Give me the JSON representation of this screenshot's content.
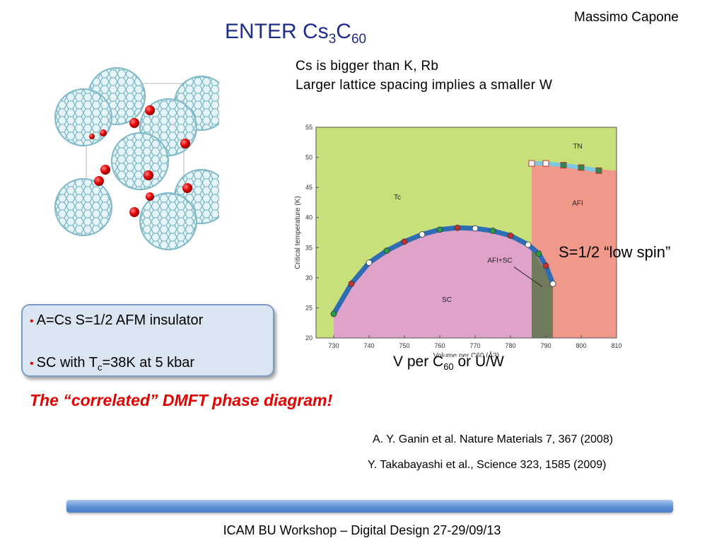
{
  "header": {
    "author": "Massimo Capone",
    "title_main": "ENTER Cs",
    "title_sub1": "3",
    "title_mid": "C",
    "title_sub2": "60"
  },
  "notes": {
    "line1": "Cs is bigger than K, Rb",
    "line2": "Larger lattice spacing implies a smaller W"
  },
  "bullets": {
    "item1": "A=Cs S=1/2 AFM insulator",
    "item2_pre": "SC with T",
    "item2_sub": "c",
    "item2_post": "=38K at 5 kbar"
  },
  "figure": {
    "spin_label": "S=1/2 “low spin”",
    "v_label_pre": "V per C",
    "v_label_sub": "60",
    "v_label_post": " or U/W",
    "icon": "c60-crystal-structure-illustration"
  },
  "chart_data": {
    "type": "area",
    "ylabel": "Critical temperature (K)",
    "xlabel": "Volume per C60 (Å3)",
    "xlim": [
      725,
      810
    ],
    "ylim": [
      20,
      55
    ],
    "xticks": [
      "730",
      "740",
      "750",
      "760",
      "770",
      "780",
      "790",
      "800",
      "810"
    ],
    "yticks": [
      "20",
      "25",
      "30",
      "35",
      "40",
      "45",
      "50",
      "55"
    ],
    "regions": [
      "Tc",
      "TN",
      "AFI",
      "SC",
      "AFI+SC"
    ],
    "series": [
      {
        "name": "Tc",
        "x": [
          730,
          735,
          740,
          745,
          750,
          755,
          760,
          765,
          770,
          775,
          780,
          785,
          788,
          790,
          792
        ],
        "values": [
          24,
          29,
          32.5,
          34.5,
          36,
          37.2,
          38,
          38.3,
          38.2,
          37.8,
          37,
          35.5,
          34,
          32,
          29
        ]
      },
      {
        "name": "TN",
        "x": [
          786,
          790,
          795,
          800,
          805
        ],
        "values": [
          49,
          49,
          48.7,
          48.3,
          47.8
        ]
      }
    ],
    "boundaries": {
      "afi_start": 786,
      "afi_sc_end": 792
    },
    "colors": {
      "background": "#c8e07a",
      "sc": "#dfa2c8",
      "afi": "#f0998a",
      "afi_sc": "#707a5c",
      "curve": "#2e6db4",
      "tn": "#7cc8e0"
    }
  },
  "references": {
    "dmft": "The  “correlated” DMFT phase diagram!",
    "ref1": "A. Y. Ganin et al. Nature Materials 7, 367 (2008)",
    "ref2": "Y. Takabayashi et al., Science 323, 1585 (2009)"
  },
  "footer": {
    "text": "ICAM BU Workshop – Digital Design 27-29/09/13"
  }
}
